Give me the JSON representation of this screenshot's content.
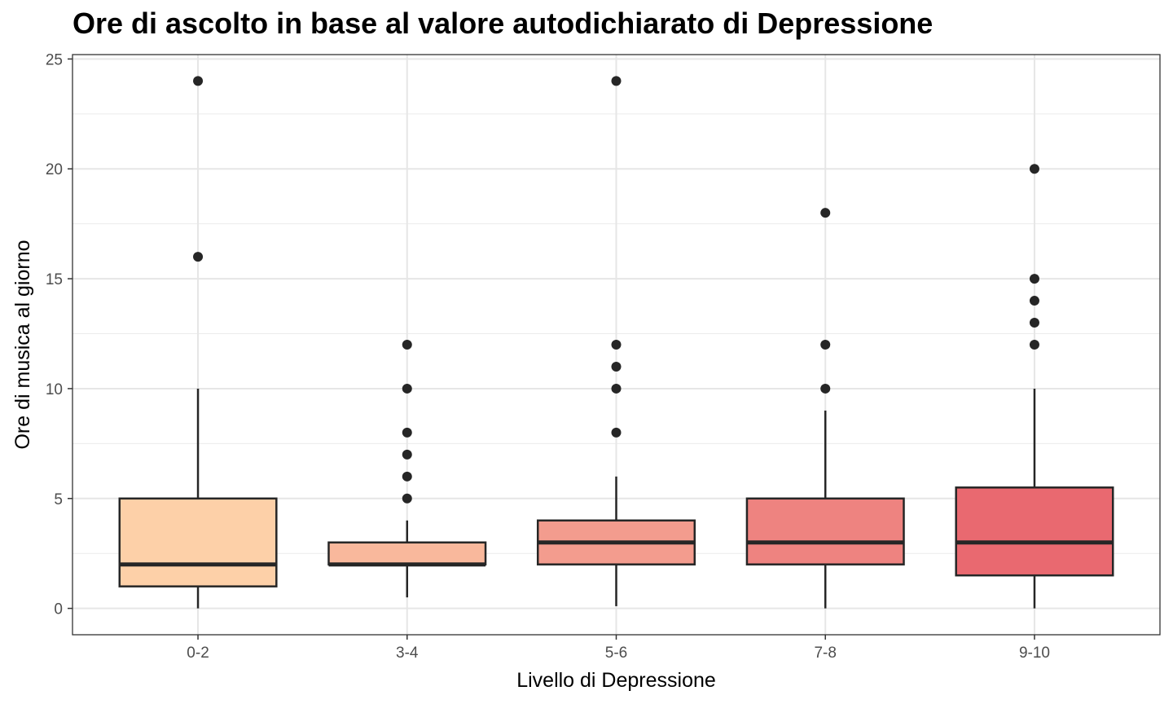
{
  "chart_data": {
    "type": "box",
    "title": "Ore di ascolto in base al valore autodichiarato di Depressione",
    "xlabel": "Livello di Depressione",
    "ylabel": "Ore di musica al giorno",
    "ylim": [
      -1.2,
      25.2
    ],
    "yticks": [
      0,
      5,
      10,
      15,
      20,
      25
    ],
    "grid": true,
    "legend": "none",
    "categories": [
      "0-2",
      "3-4",
      "5-6",
      "7-8",
      "9-10"
    ],
    "boxes": [
      {
        "category": "0-2",
        "whisker_low": 0,
        "q1": 1,
        "median": 2,
        "q3": 5,
        "whisker_high": 10,
        "outliers": [
          16,
          24
        ],
        "color": "#FDD0A8"
      },
      {
        "category": "3-4",
        "whisker_low": 0.5,
        "q1": 2,
        "median": 2,
        "q3": 3,
        "whisker_high": 4,
        "outliers": [
          5,
          6,
          7,
          8,
          10,
          12
        ],
        "color": "#F9B89C"
      },
      {
        "category": "5-6",
        "whisker_low": 0.1,
        "q1": 2,
        "median": 3,
        "q3": 4,
        "whisker_high": 6,
        "outliers": [
          8,
          10,
          11,
          12,
          24
        ],
        "color": "#F39C8E"
      },
      {
        "category": "7-8",
        "whisker_low": 0,
        "q1": 2,
        "median": 3,
        "q3": 5,
        "whisker_high": 9,
        "outliers": [
          10,
          12,
          18
        ],
        "color": "#EE8380"
      },
      {
        "category": "9-10",
        "whisker_low": 0,
        "q1": 1.5,
        "median": 3,
        "q3": 5.5,
        "whisker_high": 10,
        "outliers": [
          12,
          13,
          14,
          15,
          20
        ],
        "color": "#E96970"
      }
    ]
  }
}
